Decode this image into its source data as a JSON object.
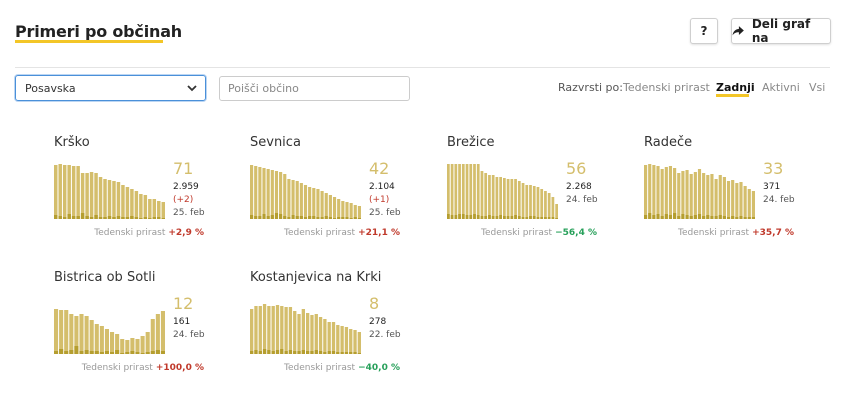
{
  "header": {
    "title": "Primeri po občinah",
    "help_label": "?",
    "share_label": "Deli graf na"
  },
  "filters": {
    "region_selected": "Posavska",
    "search_placeholder": "Poišči občino"
  },
  "sort": {
    "label": "Razvrsti po:",
    "options": [
      "Tedenski prirast",
      "Zadnji",
      "Aktivni",
      "Vsi"
    ],
    "active": "Zadnji"
  },
  "colors": {
    "accent": "#f3c627",
    "bar": "#d4be6c",
    "bar_dark": "#b59e2f",
    "up": "#c0392b",
    "down": "#27a05a"
  },
  "foot_label": "Tedenski prirast",
  "municipalities": [
    {
      "name": "Krško",
      "big": "71",
      "total": "2.959",
      "delta": "(+2)",
      "date": "25. feb",
      "weekly": "+2,9 %",
      "trend": "up",
      "chart_data": {
        "type": "bar",
        "values": [
          54,
          55,
          54,
          54,
          53,
          53,
          46,
          46,
          47,
          46,
          42,
          40,
          39,
          38,
          37,
          34,
          32,
          30,
          28,
          25,
          24,
          20,
          20,
          18,
          17
        ],
        "small": [
          4,
          3,
          2,
          5,
          3,
          3,
          6,
          3,
          2,
          4,
          2,
          2,
          3,
          2,
          3,
          2,
          2,
          3,
          2,
          1,
          2,
          1,
          2,
          2,
          1
        ]
      }
    },
    {
      "name": "Sevnica",
      "big": "42",
      "total": "2.104",
      "delta": "(+1)",
      "date": "25. feb",
      "weekly": "+21,1 %",
      "trend": "up",
      "chart_data": {
        "type": "bar",
        "values": [
          54,
          53,
          52,
          51,
          50,
          49,
          48,
          47,
          45,
          40,
          39,
          38,
          36,
          34,
          32,
          31,
          30,
          28,
          26,
          24,
          22,
          20,
          18,
          17,
          16,
          14,
          13
        ],
        "small": [
          4,
          3,
          3,
          5,
          3,
          4,
          6,
          5,
          3,
          2,
          4,
          3,
          3,
          2,
          3,
          3,
          2,
          2,
          3,
          2,
          1,
          2,
          2,
          2,
          1,
          2,
          1
        ]
      }
    },
    {
      "name": "Brežice",
      "big": "56",
      "total": "2.268",
      "delta": "",
      "date": "24. feb",
      "weekly": "−56,4 %",
      "trend": "down",
      "chart_data": {
        "type": "bar",
        "values": [
          55,
          55,
          55,
          55,
          55,
          55,
          55,
          55,
          55,
          48,
          46,
          44,
          44,
          42,
          42,
          41,
          40,
          40,
          40,
          38,
          36,
          34,
          34,
          33,
          32,
          30,
          28,
          26,
          22,
          15
        ],
        "small": [
          5,
          4,
          4,
          5,
          5,
          4,
          4,
          5,
          4,
          3,
          3,
          4,
          3,
          3,
          4,
          3,
          3,
          3,
          4,
          3,
          2,
          2,
          3,
          3,
          2,
          2,
          2,
          2,
          2,
          1
        ]
      }
    },
    {
      "name": "Radeče",
      "big": "33",
      "total": "371",
      "delta": "",
      "date": "24. feb",
      "weekly": "+35,7 %",
      "trend": "up",
      "chart_data": {
        "type": "bar",
        "values": [
          54,
          55,
          54,
          53,
          50,
          52,
          53,
          51,
          46,
          48,
          49,
          45,
          47,
          50,
          46,
          44,
          45,
          40,
          44,
          42,
          38,
          39,
          36,
          37,
          33,
          30,
          28
        ],
        "small": [
          4,
          6,
          4,
          5,
          3,
          5,
          4,
          6,
          3,
          5,
          4,
          3,
          4,
          5,
          3,
          4,
          3,
          3,
          4,
          3,
          2,
          3,
          2,
          3,
          2,
          2,
          2
        ]
      }
    },
    {
      "name": "Bistrica ob Sotli",
      "big": "12",
      "total": "161",
      "delta": "",
      "date": "24. feb",
      "weekly": "+100,0 %",
      "trend": "up",
      "chart_data": {
        "type": "bar",
        "values": [
          45,
          44,
          44,
          40,
          38,
          40,
          38,
          34,
          30,
          28,
          25,
          22,
          20,
          15,
          14,
          16,
          15,
          18,
          22,
          35,
          40,
          43
        ],
        "small": [
          3,
          5,
          3,
          4,
          8,
          3,
          4,
          3,
          3,
          2,
          3,
          2,
          4,
          1,
          2,
          3,
          2,
          1,
          2,
          3,
          4,
          3
        ]
      }
    },
    {
      "name": "Kostanjevica na Krki",
      "big": "8",
      "total": "278",
      "delta": "",
      "date": "22. feb",
      "weekly": "−40,0 %",
      "trend": "down",
      "chart_data": {
        "type": "bar",
        "values": [
          45,
          48,
          48,
          50,
          48,
          48,
          49,
          48,
          47,
          47,
          43,
          40,
          45,
          41,
          39,
          40,
          37,
          35,
          32,
          32,
          29,
          28,
          27,
          25,
          24,
          22
        ],
        "small": [
          3,
          4,
          3,
          5,
          4,
          3,
          4,
          5,
          3,
          4,
          3,
          3,
          4,
          3,
          3,
          4,
          3,
          2,
          3,
          3,
          2,
          2,
          2,
          2,
          2,
          1
        ]
      }
    }
  ]
}
